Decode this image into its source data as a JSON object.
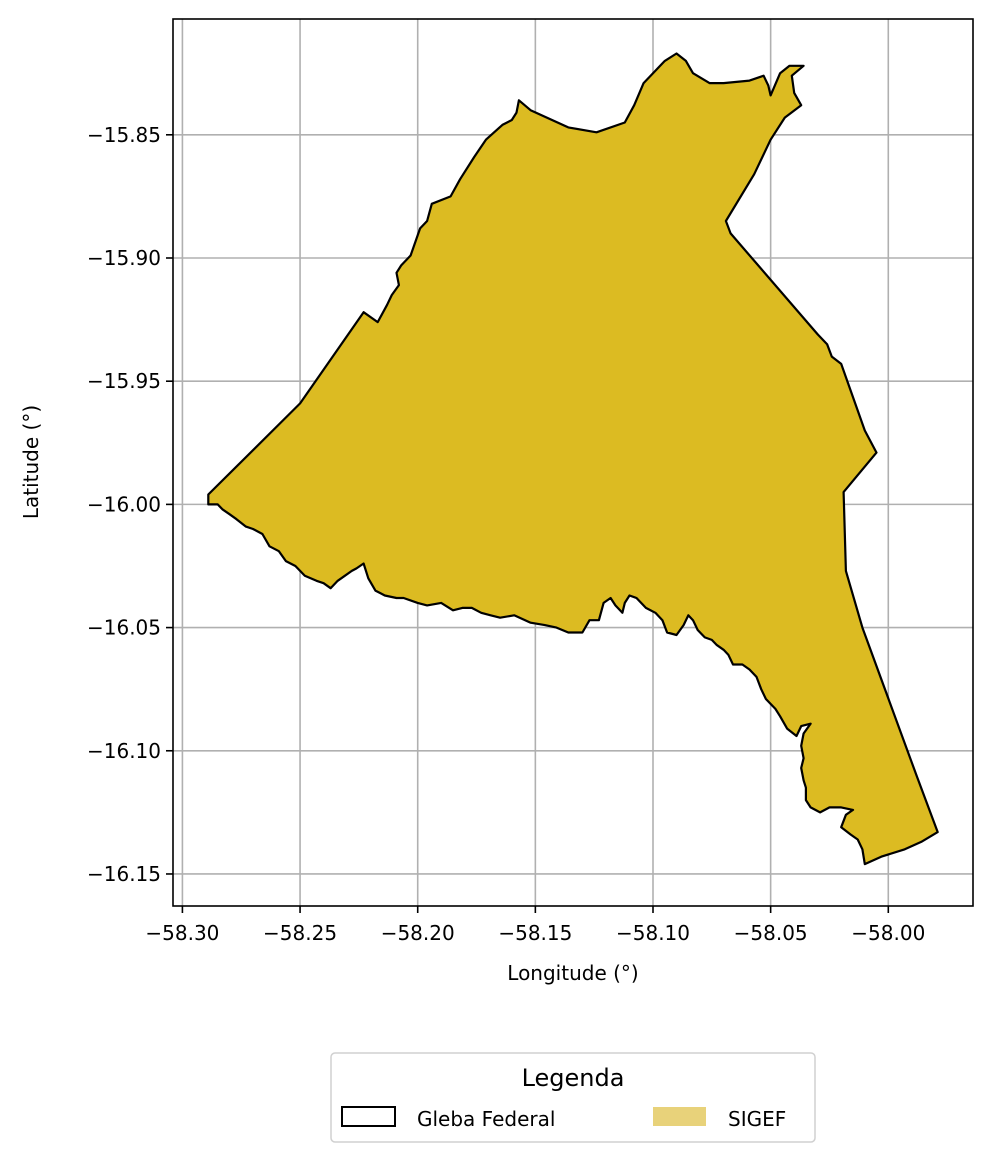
{
  "chart_data": {
    "type": "map",
    "xlabel": "Longitude (°)",
    "ylabel": "Latitude (°)",
    "xlim": [
      -58.304,
      -57.964
    ],
    "ylim": [
      -16.163,
      -15.803
    ],
    "x_ticks": [
      -58.3,
      -58.25,
      -58.2,
      -58.15,
      -58.1,
      -58.05,
      -58.0
    ],
    "x_tick_labels": [
      "−58.30",
      "−58.25",
      "−58.20",
      "−58.15",
      "−58.10",
      "−58.05",
      "−58.00"
    ],
    "y_ticks": [
      -15.85,
      -15.9,
      -15.95,
      -16.0,
      -16.05,
      -16.1,
      -16.15
    ],
    "y_tick_labels": [
      "−15.85",
      "−15.90",
      "−15.95",
      "−16.00",
      "−16.05",
      "−16.10",
      "−16.15"
    ],
    "grid": true,
    "legend": {
      "title": "Legenda",
      "placement": "bottom-center-outside",
      "entries": [
        {
          "label": "Gleba Federal",
          "style": "outline",
          "edge_color": "#000000",
          "face_color": "none"
        },
        {
          "label": "SIGEF",
          "style": "fill",
          "face_color": "#e8d27a"
        }
      ]
    },
    "colors": {
      "polygon_fill": "#dcbb22",
      "polygon_edge": "#000000",
      "grid": "#b0b0b0"
    },
    "polygon": [
      [
        -58.289,
        -15.996
      ],
      [
        -58.25,
        -15.959
      ],
      [
        -58.223,
        -15.922
      ],
      [
        -58.217,
        -15.926
      ],
      [
        -58.213,
        -15.919
      ],
      [
        -58.211,
        -15.915
      ],
      [
        -58.208,
        -15.911
      ],
      [
        -58.209,
        -15.906
      ],
      [
        -58.207,
        -15.903
      ],
      [
        -58.203,
        -15.899
      ],
      [
        -58.199,
        -15.888
      ],
      [
        -58.196,
        -15.885
      ],
      [
        -58.194,
        -15.878
      ],
      [
        -58.186,
        -15.875
      ],
      [
        -58.182,
        -15.868
      ],
      [
        -58.176,
        -15.859
      ],
      [
        -58.171,
        -15.852
      ],
      [
        -58.164,
        -15.846
      ],
      [
        -58.16,
        -15.844
      ],
      [
        -58.158,
        -15.841
      ],
      [
        -58.157,
        -15.836
      ],
      [
        -58.152,
        -15.84
      ],
      [
        -58.136,
        -15.847
      ],
      [
        -58.124,
        -15.849
      ],
      [
        -58.112,
        -15.845
      ],
      [
        -58.108,
        -15.838
      ],
      [
        -58.104,
        -15.829
      ],
      [
        -58.095,
        -15.82
      ],
      [
        -58.09,
        -15.817
      ],
      [
        -58.086,
        -15.82
      ],
      [
        -58.083,
        -15.825
      ],
      [
        -58.076,
        -15.829
      ],
      [
        -58.07,
        -15.829
      ],
      [
        -58.059,
        -15.828
      ],
      [
        -58.053,
        -15.826
      ],
      [
        -58.051,
        -15.83
      ],
      [
        -58.05,
        -15.834
      ],
      [
        -58.046,
        -15.825
      ],
      [
        -58.042,
        -15.822
      ],
      [
        -58.036,
        -15.822
      ],
      [
        -58.041,
        -15.826
      ],
      [
        -58.04,
        -15.833
      ],
      [
        -58.037,
        -15.838
      ],
      [
        -58.044,
        -15.843
      ],
      [
        -58.05,
        -15.852
      ],
      [
        -58.057,
        -15.866
      ],
      [
        -58.069,
        -15.885
      ],
      [
        -58.067,
        -15.89
      ],
      [
        -58.03,
        -15.931
      ],
      [
        -58.026,
        -15.935
      ],
      [
        -58.024,
        -15.94
      ],
      [
        -58.02,
        -15.943
      ],
      [
        -58.01,
        -15.97
      ],
      [
        -58.005,
        -15.979
      ],
      [
        -58.019,
        -15.995
      ],
      [
        -58.018,
        -16.027
      ],
      [
        -58.011,
        -16.05
      ],
      [
        -57.988,
        -16.11
      ],
      [
        -57.979,
        -16.133
      ],
      [
        -57.986,
        -16.137
      ],
      [
        -57.993,
        -16.14
      ],
      [
        -58.003,
        -16.143
      ],
      [
        -58.01,
        -16.146
      ],
      [
        -58.011,
        -16.14
      ],
      [
        -58.013,
        -16.136
      ],
      [
        -58.016,
        -16.134
      ],
      [
        -58.02,
        -16.131
      ],
      [
        -58.018,
        -16.126
      ],
      [
        -58.015,
        -16.124
      ],
      [
        -58.02,
        -16.123
      ],
      [
        -58.025,
        -16.123
      ],
      [
        -58.029,
        -16.125
      ],
      [
        -58.033,
        -16.123
      ],
      [
        -58.035,
        -16.12
      ],
      [
        -58.035,
        -16.115
      ],
      [
        -58.036,
        -16.112
      ],
      [
        -58.037,
        -16.107
      ],
      [
        -58.036,
        -16.103
      ],
      [
        -58.037,
        -16.098
      ],
      [
        -58.036,
        -16.093
      ],
      [
        -58.033,
        -16.089
      ],
      [
        -58.037,
        -16.09
      ],
      [
        -58.039,
        -16.094
      ],
      [
        -58.043,
        -16.091
      ],
      [
        -58.046,
        -16.086
      ],
      [
        -58.048,
        -16.083
      ],
      [
        -58.052,
        -16.079
      ],
      [
        -58.054,
        -16.075
      ],
      [
        -58.056,
        -16.07
      ],
      [
        -58.059,
        -16.067
      ],
      [
        -58.062,
        -16.065
      ],
      [
        -58.066,
        -16.065
      ],
      [
        -58.068,
        -16.061
      ],
      [
        -58.07,
        -16.059
      ],
      [
        -58.073,
        -16.057
      ],
      [
        -58.075,
        -16.055
      ],
      [
        -58.078,
        -16.054
      ],
      [
        -58.081,
        -16.051
      ],
      [
        -58.083,
        -16.047
      ],
      [
        -58.085,
        -16.045
      ],
      [
        -58.087,
        -16.049
      ],
      [
        -58.09,
        -16.053
      ],
      [
        -58.094,
        -16.052
      ],
      [
        -58.096,
        -16.047
      ],
      [
        -58.099,
        -16.044
      ],
      [
        -58.103,
        -16.042
      ],
      [
        -58.107,
        -16.038
      ],
      [
        -58.11,
        -16.037
      ],
      [
        -58.112,
        -16.04
      ],
      [
        -58.113,
        -16.044
      ],
      [
        -58.116,
        -16.041
      ],
      [
        -58.118,
        -16.038
      ],
      [
        -58.121,
        -16.04
      ],
      [
        -58.123,
        -16.047
      ],
      [
        -58.127,
        -16.047
      ],
      [
        -58.13,
        -16.052
      ],
      [
        -58.136,
        -16.052
      ],
      [
        -58.141,
        -16.05
      ],
      [
        -58.146,
        -16.049
      ],
      [
        -58.152,
        -16.048
      ],
      [
        -58.159,
        -16.045
      ],
      [
        -58.165,
        -16.046
      ],
      [
        -58.169,
        -16.045
      ],
      [
        -58.173,
        -16.044
      ],
      [
        -58.177,
        -16.042
      ],
      [
        -58.181,
        -16.042
      ],
      [
        -58.185,
        -16.043
      ],
      [
        -58.19,
        -16.04
      ],
      [
        -58.196,
        -16.041
      ],
      [
        -58.2,
        -16.04
      ],
      [
        -58.206,
        -16.038
      ],
      [
        -58.209,
        -16.038
      ],
      [
        -58.214,
        -16.037
      ],
      [
        -58.218,
        -16.035
      ],
      [
        -58.221,
        -16.03
      ],
      [
        -58.223,
        -16.024
      ],
      [
        -58.226,
        -16.026
      ],
      [
        -58.228,
        -16.027
      ],
      [
        -58.231,
        -16.029
      ],
      [
        -58.234,
        -16.031
      ],
      [
        -58.237,
        -16.034
      ],
      [
        -58.24,
        -16.032
      ],
      [
        -58.243,
        -16.031
      ],
      [
        -58.248,
        -16.029
      ],
      [
        -58.252,
        -16.025
      ],
      [
        -58.256,
        -16.023
      ],
      [
        -58.259,
        -16.019
      ],
      [
        -58.263,
        -16.017
      ],
      [
        -58.266,
        -16.012
      ],
      [
        -58.27,
        -16.01
      ],
      [
        -58.273,
        -16.009
      ],
      [
        -58.277,
        -16.006
      ],
      [
        -58.28,
        -16.004
      ],
      [
        -58.283,
        -16.002
      ],
      [
        -58.285,
        -16.0
      ],
      [
        -58.289,
        -16.0
      ]
    ]
  }
}
